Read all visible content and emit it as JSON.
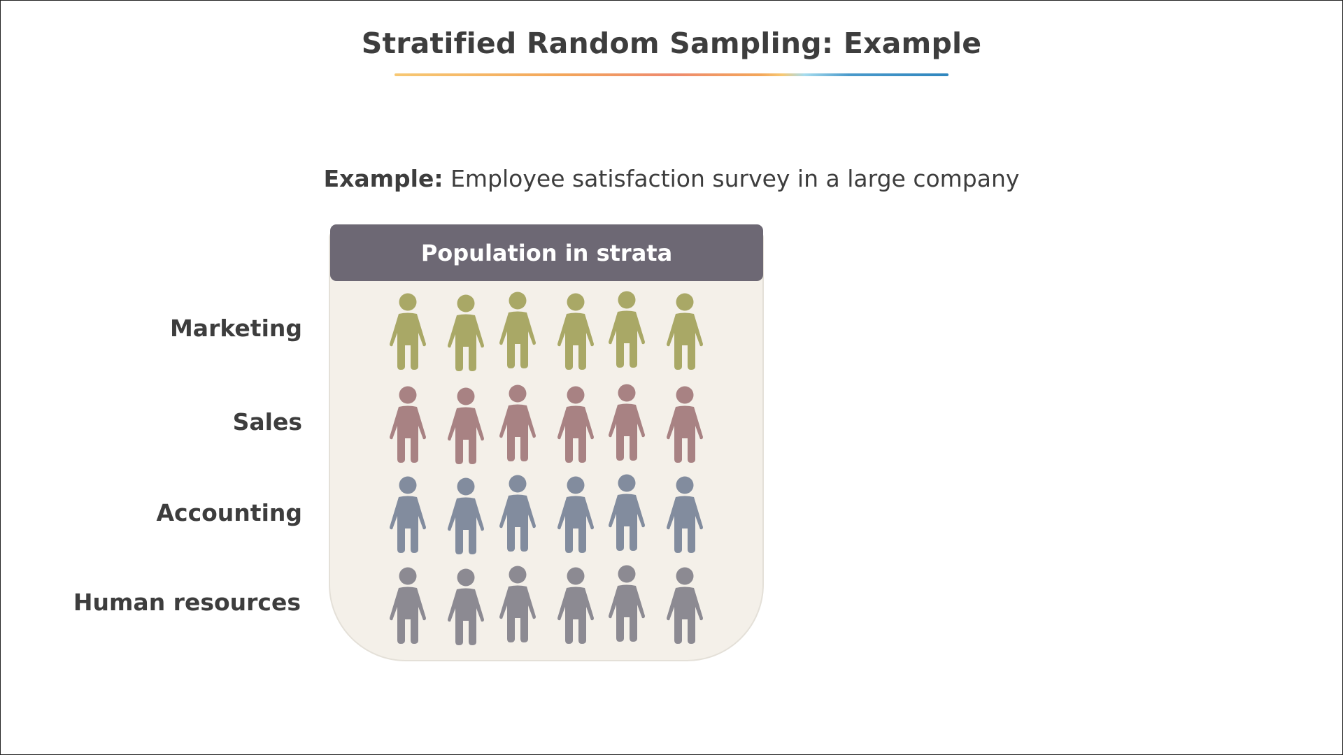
{
  "title": "Stratified Random Sampling: Example",
  "subtitle": {
    "lead": "Example:",
    "text": "Employee satisfaction survey in a large company"
  },
  "panel": {
    "header": "Population in strata"
  },
  "strata": [
    {
      "label": "Marketing",
      "color": "#a9a866",
      "count": 6,
      "icon": "person-icon"
    },
    {
      "label": "Sales",
      "color": "#a88283",
      "count": 6,
      "icon": "person-icon"
    },
    {
      "label": "Accounting",
      "color": "#828c9e",
      "count": 6,
      "icon": "person-icon"
    },
    {
      "label": "Human resources",
      "color": "#8c8a92",
      "count": 6,
      "icon": "person-icon"
    }
  ]
}
